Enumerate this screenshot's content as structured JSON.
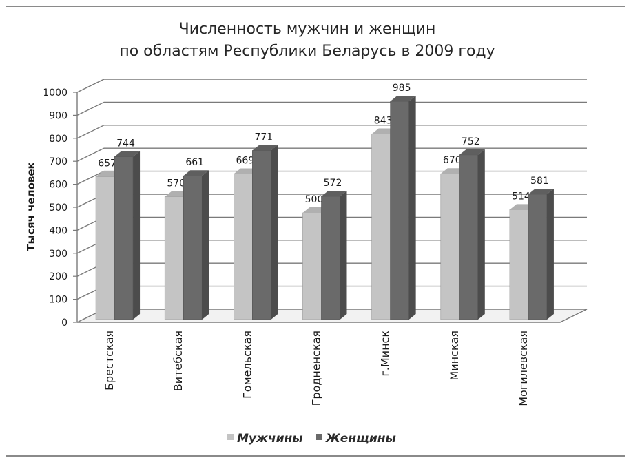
{
  "chart_data": {
    "type": "bar",
    "title": [
      "Численность мужчин и женщин",
      "по областям Республики Беларусь в 2009 году"
    ],
    "ylabel": "Тысяч человек",
    "xlabel": "",
    "ylim": [
      0,
      1000
    ],
    "yticks": [
      "0",
      "100",
      "200",
      "300",
      "400",
      "500",
      "600",
      "700",
      "800",
      "900",
      "1000"
    ],
    "grid": true,
    "legend_position": "bottom",
    "categories": [
      "Брестская",
      "Витебская",
      "Гомельская",
      "Гродненская",
      "г.Минск",
      "Минская",
      "Могилевская"
    ],
    "series": [
      {
        "name": "Мужчины",
        "color": "#c4c4c4",
        "values": [
          657,
          570,
          669,
          500,
          843,
          670,
          514
        ],
        "labels": [
          "657",
          "570",
          "669",
          "500",
          "843",
          "670",
          "514"
        ]
      },
      {
        "name": "Женщины",
        "color": "#6a6a6a",
        "values": [
          744,
          661,
          771,
          572,
          985,
          752,
          581
        ],
        "labels": [
          "744",
          "661",
          "771",
          "572",
          "985",
          "752",
          "581"
        ]
      }
    ]
  }
}
